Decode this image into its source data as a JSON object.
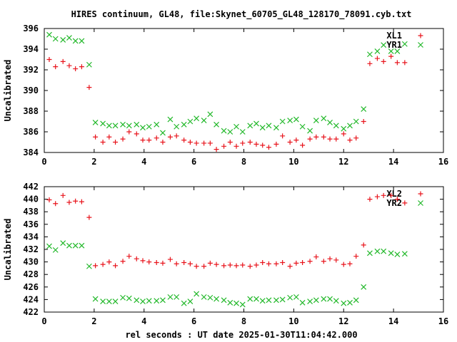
{
  "title": "HIRES continuum, GL48, file:Skynet_60705_GL48_128170_78091.cyb.txt",
  "xlabel": "rel seconds : UT date 2025-01-30T11:04:42.000",
  "colors": {
    "red": "#e8141c",
    "green": "#22b82a",
    "frame": "#000000"
  },
  "chart_data": [
    {
      "type": "scatter",
      "title": "",
      "xlabel": "",
      "ylabel": "Uncalibrated",
      "xlim": [
        0,
        16
      ],
      "ylim": [
        384,
        396
      ],
      "xticks": [
        0,
        2,
        4,
        6,
        8,
        10,
        12,
        14,
        16
      ],
      "yticks": [
        384,
        386,
        388,
        390,
        392,
        394,
        396
      ],
      "legend_position": "top-right",
      "series": [
        {
          "name": "XL1",
          "marker": "plus",
          "color": "#e8141c",
          "points": [
            [
              0.2,
              393.0
            ],
            [
              0.45,
              392.3
            ],
            [
              0.75,
              392.8
            ],
            [
              1.0,
              392.4
            ],
            [
              1.25,
              392.1
            ],
            [
              1.5,
              392.3
            ],
            [
              1.8,
              390.3
            ],
            [
              2.05,
              385.5
            ],
            [
              2.35,
              385.0
            ],
            [
              2.6,
              385.5
            ],
            [
              2.85,
              385.0
            ],
            [
              3.15,
              385.3
            ],
            [
              3.4,
              386.0
            ],
            [
              3.7,
              385.8
            ],
            [
              3.95,
              385.2
            ],
            [
              4.2,
              385.2
            ],
            [
              4.5,
              385.4
            ],
            [
              4.75,
              385.0
            ],
            [
              5.05,
              385.5
            ],
            [
              5.3,
              385.6
            ],
            [
              5.6,
              385.2
            ],
            [
              5.85,
              385.0
            ],
            [
              6.1,
              384.9
            ],
            [
              6.4,
              384.9
            ],
            [
              6.65,
              384.9
            ],
            [
              6.9,
              384.3
            ],
            [
              7.2,
              384.6
            ],
            [
              7.45,
              385.0
            ],
            [
              7.7,
              384.6
            ],
            [
              7.95,
              384.9
            ],
            [
              8.25,
              385.0
            ],
            [
              8.5,
              384.8
            ],
            [
              8.75,
              384.7
            ],
            [
              9.0,
              384.5
            ],
            [
              9.3,
              384.8
            ],
            [
              9.55,
              385.6
            ],
            [
              9.85,
              385.0
            ],
            [
              10.1,
              385.2
            ],
            [
              10.35,
              384.7
            ],
            [
              10.65,
              385.3
            ],
            [
              10.9,
              385.5
            ],
            [
              11.2,
              385.5
            ],
            [
              11.45,
              385.3
            ],
            [
              11.7,
              385.3
            ],
            [
              12.0,
              385.8
            ],
            [
              12.25,
              385.2
            ],
            [
              12.5,
              385.4
            ],
            [
              12.8,
              387.0
            ],
            [
              13.05,
              392.6
            ],
            [
              13.35,
              393.1
            ],
            [
              13.6,
              392.8
            ],
            [
              13.9,
              393.3
            ],
            [
              14.15,
              392.7
            ],
            [
              14.45,
              392.7
            ]
          ]
        },
        {
          "name": "YR1",
          "marker": "cross",
          "color": "#22b82a",
          "points": [
            [
              0.2,
              395.4
            ],
            [
              0.45,
              395.0
            ],
            [
              0.75,
              394.9
            ],
            [
              1.0,
              395.1
            ],
            [
              1.25,
              394.8
            ],
            [
              1.5,
              394.8
            ],
            [
              1.8,
              392.5
            ],
            [
              2.05,
              386.9
            ],
            [
              2.35,
              386.8
            ],
            [
              2.6,
              386.6
            ],
            [
              2.85,
              386.6
            ],
            [
              3.15,
              386.7
            ],
            [
              3.4,
              386.6
            ],
            [
              3.7,
              386.7
            ],
            [
              3.95,
              386.4
            ],
            [
              4.2,
              386.5
            ],
            [
              4.5,
              386.7
            ],
            [
              4.75,
              385.9
            ],
            [
              5.05,
              387.2
            ],
            [
              5.3,
              386.5
            ],
            [
              5.6,
              386.7
            ],
            [
              5.85,
              387.0
            ],
            [
              6.1,
              387.3
            ],
            [
              6.4,
              387.1
            ],
            [
              6.65,
              387.7
            ],
            [
              6.9,
              386.7
            ],
            [
              7.2,
              386.1
            ],
            [
              7.45,
              386.0
            ],
            [
              7.7,
              386.5
            ],
            [
              7.95,
              386.0
            ],
            [
              8.25,
              386.6
            ],
            [
              8.5,
              386.8
            ],
            [
              8.75,
              386.4
            ],
            [
              9.0,
              386.6
            ],
            [
              9.3,
              386.4
            ],
            [
              9.55,
              387.0
            ],
            [
              9.85,
              387.1
            ],
            [
              10.1,
              387.2
            ],
            [
              10.35,
              386.5
            ],
            [
              10.65,
              386.1
            ],
            [
              10.9,
              387.1
            ],
            [
              11.2,
              387.3
            ],
            [
              11.45,
              386.9
            ],
            [
              11.7,
              386.6
            ],
            [
              12.0,
              386.3
            ],
            [
              12.25,
              386.6
            ],
            [
              12.5,
              387.0
            ],
            [
              12.8,
              388.2
            ],
            [
              13.05,
              393.5
            ],
            [
              13.35,
              393.8
            ],
            [
              13.6,
              394.4
            ],
            [
              13.9,
              393.8
            ],
            [
              14.15,
              393.8
            ],
            [
              14.45,
              394.5
            ]
          ]
        }
      ]
    },
    {
      "type": "scatter",
      "title": "",
      "xlabel": "",
      "ylabel": "Uncalibrated",
      "xlim": [
        0,
        16
      ],
      "ylim": [
        422,
        442
      ],
      "xticks": [
        0,
        2,
        4,
        6,
        8,
        10,
        12,
        14,
        16
      ],
      "yticks": [
        422,
        424,
        426,
        428,
        430,
        432,
        434,
        436,
        438,
        440,
        442
      ],
      "legend_position": "top-right",
      "series": [
        {
          "name": "XL2",
          "marker": "plus",
          "color": "#e8141c",
          "points": [
            [
              0.2,
              439.9
            ],
            [
              0.45,
              439.3
            ],
            [
              0.75,
              440.6
            ],
            [
              1.0,
              439.5
            ],
            [
              1.25,
              439.7
            ],
            [
              1.5,
              439.6
            ],
            [
              1.8,
              437.1
            ],
            [
              2.05,
              429.4
            ],
            [
              2.35,
              429.6
            ],
            [
              2.6,
              430.0
            ],
            [
              2.85,
              429.4
            ],
            [
              3.15,
              430.1
            ],
            [
              3.4,
              430.9
            ],
            [
              3.7,
              430.5
            ],
            [
              3.95,
              430.2
            ],
            [
              4.2,
              430.0
            ],
            [
              4.5,
              429.9
            ],
            [
              4.75,
              429.8
            ],
            [
              5.05,
              430.4
            ],
            [
              5.3,
              429.7
            ],
            [
              5.6,
              429.9
            ],
            [
              5.85,
              429.7
            ],
            [
              6.1,
              429.3
            ],
            [
              6.4,
              429.3
            ],
            [
              6.65,
              429.8
            ],
            [
              6.9,
              429.6
            ],
            [
              7.2,
              429.4
            ],
            [
              7.45,
              429.5
            ],
            [
              7.7,
              429.4
            ],
            [
              7.95,
              429.5
            ],
            [
              8.25,
              429.3
            ],
            [
              8.5,
              429.5
            ],
            [
              8.75,
              429.9
            ],
            [
              9.0,
              429.7
            ],
            [
              9.3,
              429.7
            ],
            [
              9.55,
              429.9
            ],
            [
              9.85,
              429.3
            ],
            [
              10.1,
              429.8
            ],
            [
              10.35,
              429.9
            ],
            [
              10.65,
              430.1
            ],
            [
              10.9,
              430.8
            ],
            [
              11.2,
              430.1
            ],
            [
              11.45,
              430.5
            ],
            [
              11.7,
              430.3
            ],
            [
              12.0,
              429.6
            ],
            [
              12.25,
              429.7
            ],
            [
              12.5,
              430.9
            ],
            [
              12.8,
              432.7
            ],
            [
              13.05,
              440.0
            ],
            [
              13.35,
              440.4
            ],
            [
              13.6,
              440.6
            ],
            [
              13.9,
              440.6
            ],
            [
              14.15,
              440.0
            ],
            [
              14.45,
              439.4
            ]
          ]
        },
        {
          "name": "YR2",
          "marker": "cross",
          "color": "#22b82a",
          "points": [
            [
              0.2,
              432.5
            ],
            [
              0.45,
              431.9
            ],
            [
              0.75,
              433.0
            ],
            [
              1.0,
              432.6
            ],
            [
              1.25,
              432.6
            ],
            [
              1.5,
              432.6
            ],
            [
              1.8,
              429.3
            ],
            [
              2.05,
              424.1
            ],
            [
              2.35,
              423.7
            ],
            [
              2.6,
              423.7
            ],
            [
              2.85,
              423.7
            ],
            [
              3.15,
              424.3
            ],
            [
              3.4,
              424.2
            ],
            [
              3.7,
              423.9
            ],
            [
              3.95,
              423.7
            ],
            [
              4.2,
              423.8
            ],
            [
              4.5,
              423.8
            ],
            [
              4.75,
              423.9
            ],
            [
              5.05,
              424.4
            ],
            [
              5.3,
              424.4
            ],
            [
              5.6,
              423.4
            ],
            [
              5.85,
              423.7
            ],
            [
              6.1,
              424.9
            ],
            [
              6.4,
              424.4
            ],
            [
              6.65,
              424.3
            ],
            [
              6.9,
              424.1
            ],
            [
              7.2,
              423.9
            ],
            [
              7.45,
              423.5
            ],
            [
              7.7,
              423.4
            ],
            [
              7.95,
              423.2
            ],
            [
              8.25,
              424.1
            ],
            [
              8.5,
              424.1
            ],
            [
              8.75,
              423.8
            ],
            [
              9.0,
              423.9
            ],
            [
              9.3,
              423.9
            ],
            [
              9.55,
              424.0
            ],
            [
              9.85,
              424.3
            ],
            [
              10.1,
              424.4
            ],
            [
              10.35,
              423.5
            ],
            [
              10.65,
              423.7
            ],
            [
              10.9,
              423.9
            ],
            [
              11.2,
              424.1
            ],
            [
              11.45,
              424.1
            ],
            [
              11.7,
              423.8
            ],
            [
              12.0,
              423.4
            ],
            [
              12.25,
              423.5
            ],
            [
              12.5,
              423.9
            ],
            [
              12.8,
              426.0
            ],
            [
              13.05,
              431.4
            ],
            [
              13.35,
              431.7
            ],
            [
              13.6,
              431.7
            ],
            [
              13.9,
              431.4
            ],
            [
              14.15,
              431.2
            ],
            [
              14.45,
              431.3
            ]
          ]
        }
      ]
    }
  ]
}
